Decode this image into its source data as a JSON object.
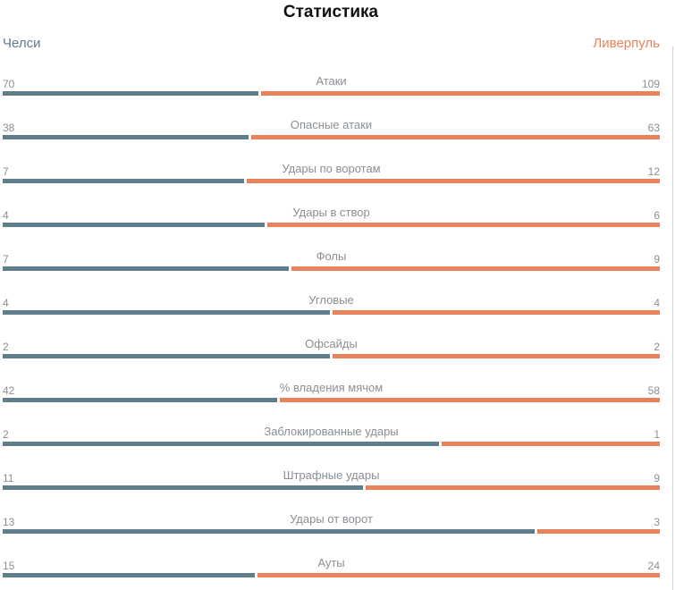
{
  "title": "Статистика",
  "teams": {
    "home": "Челси",
    "away": "Ливерпуль"
  },
  "colors": {
    "home": "#607d8b",
    "away": "#e8825a"
  },
  "chart_data": {
    "type": "bar",
    "orientation": "horizontal-split",
    "title": "Статистика",
    "series": [
      {
        "name": "Челси",
        "values": [
          70,
          38,
          7,
          4,
          7,
          4,
          2,
          42,
          2,
          11,
          13,
          15
        ]
      },
      {
        "name": "Ливерпуль",
        "values": [
          109,
          63,
          12,
          6,
          9,
          4,
          2,
          58,
          1,
          9,
          3,
          24
        ]
      }
    ],
    "categories": [
      "Атаки",
      "Опасные атаки",
      "Удары по воротам",
      "Удары в створ",
      "Фолы",
      "Угловые",
      "Офсайды",
      "% владения мячом",
      "Заблокированные удары",
      "Штрафные удары",
      "Удары от ворот",
      "Ауты"
    ]
  }
}
